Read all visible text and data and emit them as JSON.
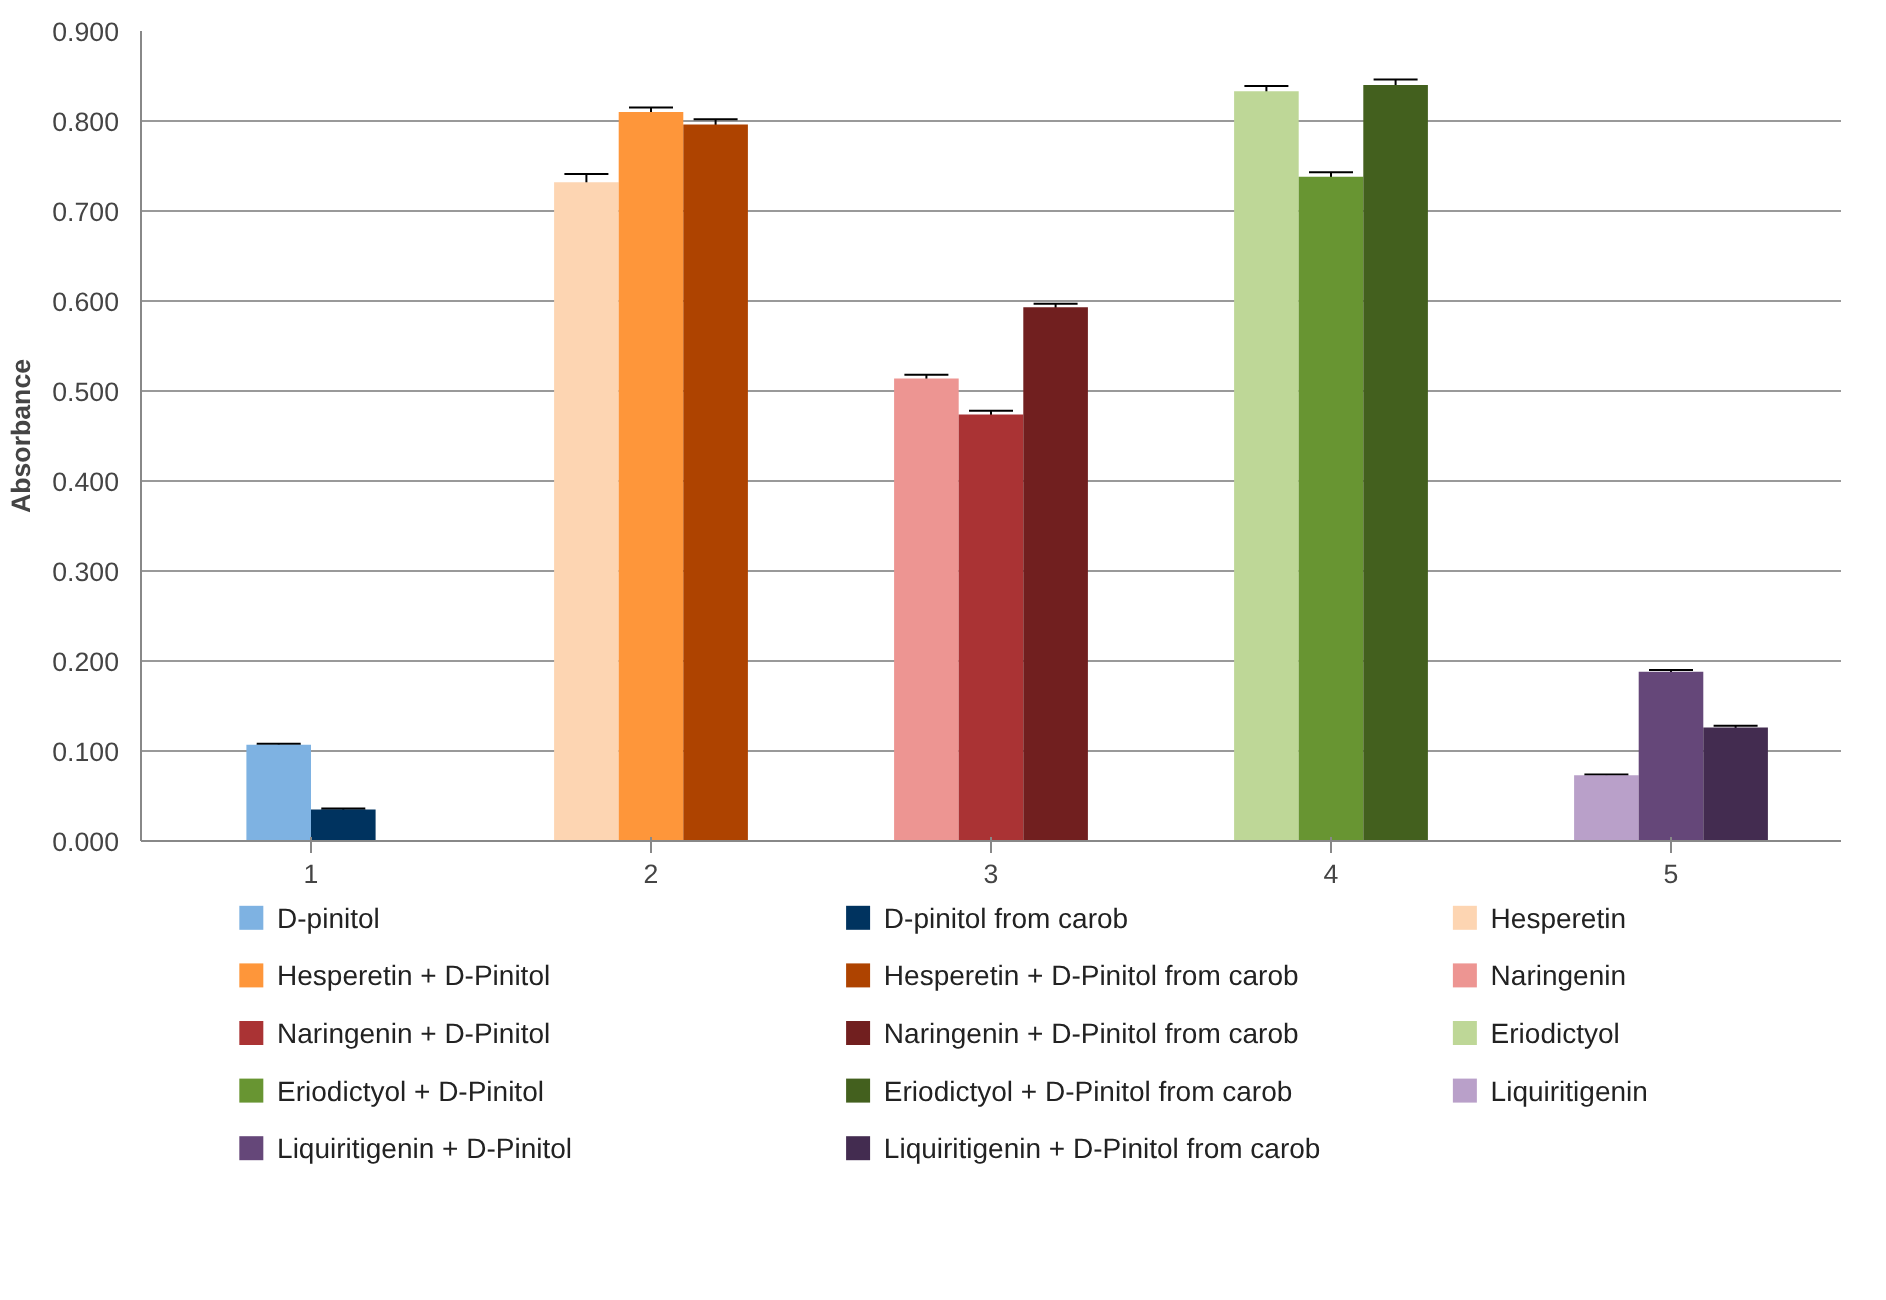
{
  "chart_data": {
    "type": "bar",
    "ylabel": "Absorbance",
    "categories": [
      "1",
      "2",
      "3",
      "4",
      "5"
    ],
    "ylim": [
      0,
      0.9
    ],
    "yticks": [
      {
        "value": 0,
        "label": "0.000"
      },
      {
        "value": 0.1,
        "label": "0.100"
      },
      {
        "value": 0.2,
        "label": "0.200"
      },
      {
        "value": 0.3,
        "label": "0.300"
      },
      {
        "value": 0.4,
        "label": "0.400"
      },
      {
        "value": 0.5,
        "label": "0.500"
      },
      {
        "value": 0.6,
        "label": "0.600"
      },
      {
        "value": 0.7,
        "label": "0.700"
      },
      {
        "value": 0.8,
        "label": "0.800"
      },
      {
        "value": 0.9,
        "label": "0.900"
      }
    ],
    "grid": "y",
    "legend": "bottom",
    "series": [
      {
        "name": "D-pinitol",
        "color": "#7eb2e2",
        "values": [
          0.107,
          null,
          null,
          null,
          null
        ],
        "errors": [
          0.001,
          null,
          null,
          null,
          null
        ]
      },
      {
        "name": "D-pinitol from carob",
        "color": "#00335f",
        "values": [
          0.035,
          null,
          null,
          null,
          null
        ],
        "errors": [
          0.001,
          null,
          null,
          null,
          null
        ]
      },
      {
        "name": "Hesperetin",
        "color": "#fdd5b2",
        "values": [
          null,
          0.732,
          null,
          null,
          null
        ],
        "errors": [
          null,
          0.009,
          null,
          null,
          null
        ]
      },
      {
        "name": "Hesperetin + D-Pinitol",
        "color": "#fe963a",
        "values": [
          null,
          0.81,
          null,
          null,
          null
        ],
        "errors": [
          null,
          0.005,
          null,
          null,
          null
        ]
      },
      {
        "name": "Hesperetin + D-Pinitol from carob",
        "color": "#ae4300",
        "values": [
          null,
          0.796,
          null,
          null,
          null
        ],
        "errors": [
          null,
          0.006,
          null,
          null,
          null
        ]
      },
      {
        "name": "Naringenin",
        "color": "#ed9592",
        "values": [
          null,
          null,
          0.514,
          null,
          null
        ],
        "errors": [
          null,
          null,
          0.004,
          null,
          null
        ]
      },
      {
        "name": "Naringenin + D-Pinitol",
        "color": "#aa3334",
        "values": [
          null,
          null,
          0.474,
          null,
          null
        ],
        "errors": [
          null,
          null,
          0.004,
          null,
          null
        ]
      },
      {
        "name": "Naringenin + D-Pinitol from carob",
        "color": "#711f1f",
        "values": [
          null,
          null,
          0.593,
          null,
          null
        ],
        "errors": [
          null,
          null,
          0.004,
          null,
          null
        ]
      },
      {
        "name": "Eriodictyol",
        "color": "#bed797",
        "values": [
          null,
          null,
          null,
          0.833,
          null
        ],
        "errors": [
          null,
          null,
          null,
          0.006,
          null
        ]
      },
      {
        "name": "Eriodictyol + D-Pinitol",
        "color": "#689532",
        "values": [
          null,
          null,
          null,
          0.738,
          null
        ],
        "errors": [
          null,
          null,
          null,
          0.005,
          null
        ]
      },
      {
        "name": "Eriodictyol + D-Pinitol from carob",
        "color": "#43601e",
        "values": [
          null,
          null,
          null,
          0.84,
          null
        ],
        "errors": [
          null,
          null,
          null,
          0.006,
          null
        ]
      },
      {
        "name": "Liquiritigenin",
        "color": "#b9a0c9",
        "values": [
          null,
          null,
          null,
          null,
          0.073
        ],
        "errors": [
          null,
          null,
          null,
          null,
          0.001
        ]
      },
      {
        "name": "Liquiritigenin + D-Pinitol",
        "color": "#654779",
        "values": [
          null,
          null,
          null,
          null,
          0.188
        ],
        "errors": [
          null,
          null,
          null,
          null,
          0.002
        ]
      },
      {
        "name": "Liquiritigenin + D-Pinitol from carob",
        "color": "#432c50",
        "values": [
          null,
          null,
          null,
          null,
          0.126
        ],
        "errors": [
          null,
          null,
          null,
          null,
          0.002
        ]
      }
    ]
  }
}
